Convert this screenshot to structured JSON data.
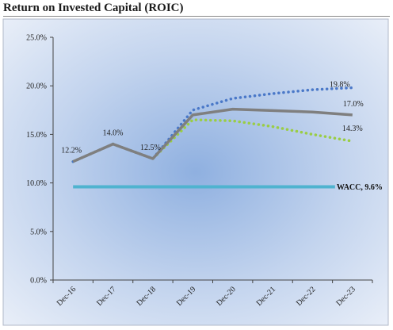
{
  "title": "Return on Invested Capital (ROIC)",
  "chart_data": {
    "type": "line",
    "title": "Return on Invested Capital (ROIC)",
    "categories": [
      "Dec-16",
      "Dec-17",
      "Dec-18",
      "Dec-19",
      "Dec-20",
      "Dec-21",
      "Dec-22",
      "Dec-23"
    ],
    "y_ticks": [
      "0.0%",
      "5.0%",
      "10.0%",
      "15.0%",
      "20.0%",
      "25.0%"
    ],
    "ylim": [
      0,
      25
    ],
    "grid": false,
    "series": [
      {
        "style": "dotted",
        "color": "#4a78c8",
        "values": [
          12.2,
          14.0,
          12.5,
          17.5,
          18.7,
          19.2,
          19.6,
          19.8
        ]
      },
      {
        "style": "solid",
        "color": "#7f7f7f",
        "values": [
          12.2,
          14.0,
          12.5,
          17.0,
          17.6,
          17.45,
          17.3,
          17.0
        ]
      },
      {
        "style": "dotted",
        "color": "#9acd45",
        "values": [
          12.2,
          14.0,
          12.5,
          16.5,
          16.4,
          15.8,
          15.0,
          14.3
        ]
      }
    ],
    "reference_line": {
      "label": "WACC, 9.6%",
      "value": 9.6,
      "color": "#4fb3cf"
    },
    "data_labels": [
      {
        "text": "12.2%",
        "category": "Dec-16",
        "value": 12.2
      },
      {
        "text": "14.0%",
        "category": "Dec-17",
        "value": 14.0
      },
      {
        "text": "12.5%",
        "category": "Dec-18",
        "value": 12.5
      },
      {
        "text": "19.8%",
        "category": "Dec-23",
        "value": 19.8
      },
      {
        "text": "17.0%",
        "category": "Dec-23",
        "value": 17.0
      },
      {
        "text": "14.3%",
        "category": "Dec-23",
        "value": 14.3
      }
    ]
  }
}
